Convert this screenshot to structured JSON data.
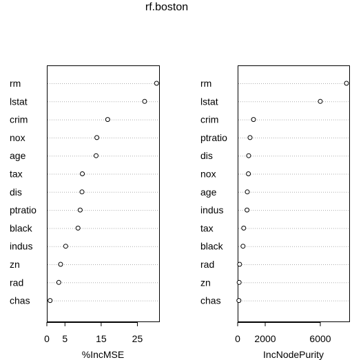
{
  "title": "rf.boston",
  "chart_data": [
    {
      "type": "scatter",
      "xlabel": "%IncMSE",
      "xlim": [
        0,
        31
      ],
      "xticks": [
        0,
        5,
        15,
        25
      ],
      "tick_labels": [
        "0",
        "5",
        "15",
        "25"
      ],
      "categories": [
        "rm",
        "lstat",
        "crim",
        "nox",
        "age",
        "tax",
        "dis",
        "ptratio",
        "black",
        "indus",
        "zn",
        "rad",
        "chas"
      ],
      "values": [
        30.3,
        27.0,
        16.8,
        13.8,
        13.6,
        9.8,
        9.7,
        9.2,
        8.6,
        5.2,
        3.8,
        3.3,
        0.9
      ],
      "grid": "dotted horizontal"
    },
    {
      "type": "scatter",
      "xlabel": "IncNodePurity",
      "xlim": [
        0,
        8100
      ],
      "xticks": [
        0,
        2000,
        6000
      ],
      "tick_labels": [
        "0",
        "2000",
        "6000"
      ],
      "categories": [
        "rm",
        "lstat",
        "crim",
        "ptratio",
        "dis",
        "nox",
        "age",
        "indus",
        "tax",
        "black",
        "rad",
        "zn",
        "chas"
      ],
      "values": [
        7900,
        6000,
        1150,
        900,
        800,
        780,
        700,
        680,
        440,
        390,
        140,
        110,
        90
      ],
      "grid": "dotted horizontal"
    }
  ]
}
